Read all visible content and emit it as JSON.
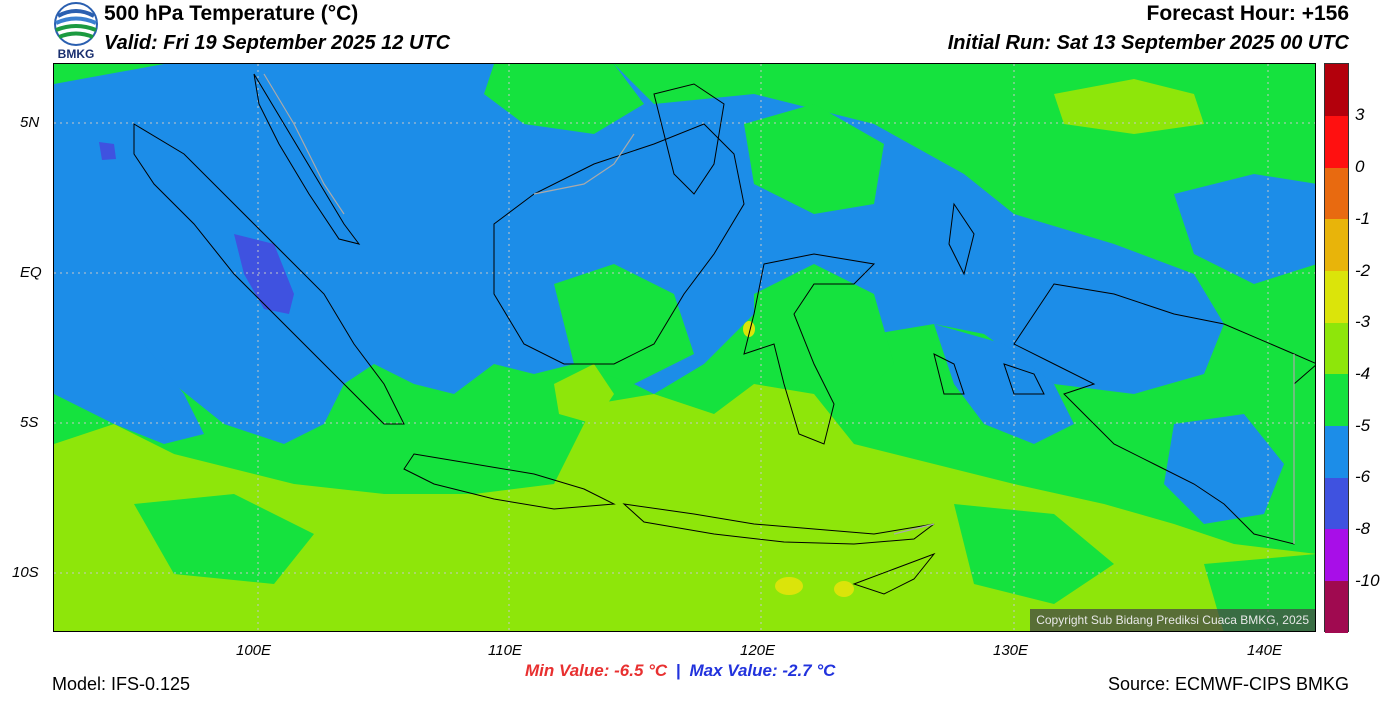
{
  "header": {
    "title": "500 hPa Temperature (°C)",
    "valid": "Valid: Fri 19 September 2025 12 UTC",
    "forecast_hour": "Forecast Hour: +156",
    "initial_run": "Initial Run: Sat 13 September 2025 00 UTC",
    "logo_text": "BMKG"
  },
  "map": {
    "lat_labels": [
      "5N",
      "EQ",
      "5S",
      "10S"
    ],
    "lon_labels": [
      "100E",
      "110E",
      "120E",
      "130E",
      "140E"
    ],
    "copyright": "Copyright Sub Bidang Prediksi Cuaca BMKG, 2025",
    "colors": {
      "ocean_base": "#15e23e",
      "blue_cold": "#1c8de8",
      "dark_blue": "#3f52e0",
      "yellow_green": "#8ee60a",
      "yellow": "#dbe40a",
      "coast": "#000000",
      "border": "#aaaaaa"
    }
  },
  "colorbar": {
    "labels": [
      "3",
      "0",
      "-1",
      "-2",
      "-3",
      "-4",
      "-5",
      "-6",
      "-8",
      "-10"
    ],
    "colors": [
      "#b3000c",
      "#ff1010",
      "#e86a10",
      "#e8b40a",
      "#dbe40a",
      "#8ee60a",
      "#15e23e",
      "#1c8de8",
      "#3f52e0",
      "#a80ee8",
      "#a00a50"
    ]
  },
  "stats": {
    "min": "Min Value: -6.5 °C",
    "separator": "|",
    "max": "Max Value: -2.7 °C",
    "min_color": "#e83030",
    "max_color": "#2233dd"
  },
  "footer": {
    "model": "Model: IFS-0.125",
    "source": "Source: ECMWF-CIPS BMKG"
  }
}
